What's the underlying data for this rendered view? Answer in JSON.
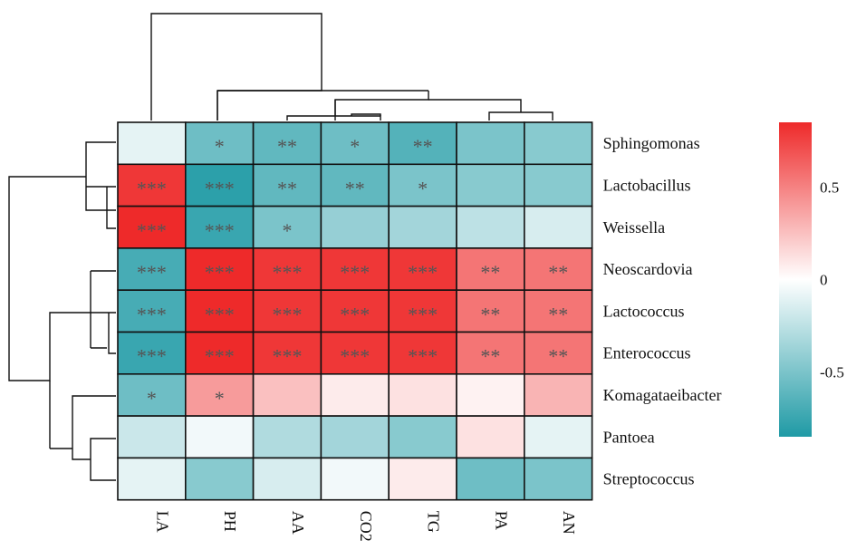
{
  "chart_data": {
    "type": "heatmap",
    "columns": [
      "LA",
      "PH",
      "AA",
      "CO2",
      "TG",
      "PA",
      "AN"
    ],
    "rows": [
      "Sphingomonas",
      "Lactobacillus",
      "Weissella",
      "Neoscardovia",
      "Lactococcus",
      "Enterococcus",
      "Komagataeibacter",
      "Pantoea",
      "Streptococcus"
    ],
    "values": [
      [
        -0.1,
        -0.55,
        -0.6,
        -0.55,
        -0.65,
        -0.5,
        -0.45
      ],
      [
        0.8,
        -0.8,
        -0.6,
        -0.6,
        -0.5,
        -0.45,
        -0.45
      ],
      [
        0.85,
        -0.75,
        -0.5,
        -0.4,
        -0.35,
        -0.25,
        -0.15
      ],
      [
        -0.7,
        0.85,
        0.8,
        0.8,
        0.8,
        0.55,
        0.55
      ],
      [
        -0.7,
        0.85,
        0.8,
        0.8,
        0.8,
        0.55,
        0.55
      ],
      [
        -0.75,
        0.85,
        0.8,
        0.8,
        0.8,
        0.55,
        0.55
      ],
      [
        -0.55,
        0.4,
        0.25,
        0.08,
        0.12,
        0.05,
        0.3
      ],
      [
        -0.2,
        -0.05,
        -0.3,
        -0.35,
        -0.45,
        0.12,
        -0.1
      ],
      [
        -0.1,
        -0.45,
        -0.15,
        -0.05,
        0.08,
        -0.55,
        -0.5
      ]
    ],
    "significance": [
      [
        "",
        "*",
        "**",
        "*",
        "**",
        "",
        ""
      ],
      [
        "***",
        "***",
        "**",
        "**",
        "*",
        "",
        ""
      ],
      [
        "***",
        "***",
        "*",
        "",
        "",
        "",
        ""
      ],
      [
        "***",
        "***",
        "***",
        "***",
        "***",
        "**",
        "**"
      ],
      [
        "***",
        "***",
        "***",
        "***",
        "***",
        "**",
        "**"
      ],
      [
        "***",
        "***",
        "***",
        "***",
        "***",
        "**",
        "**"
      ],
      [
        "*",
        "*",
        "",
        "",
        "",
        "",
        ""
      ],
      [
        "",
        "",
        "",
        "",
        "",
        "",
        ""
      ],
      [
        "",
        "",
        "",
        "",
        "",
        "",
        ""
      ]
    ],
    "color_range": [
      -0.85,
      0.85
    ],
    "colorbar_ticks": [
      {
        "value": 0.5,
        "label": "0.5"
      },
      {
        "value": 0,
        "label": "0"
      },
      {
        "value": -0.5,
        "label": "-0.5"
      }
    ],
    "colors": {
      "low": "#1f9aa5",
      "mid": "#ffffff",
      "high": "#ee2a2a"
    },
    "row_dendrogram": true,
    "column_dendrogram": true,
    "legend": "right"
  }
}
